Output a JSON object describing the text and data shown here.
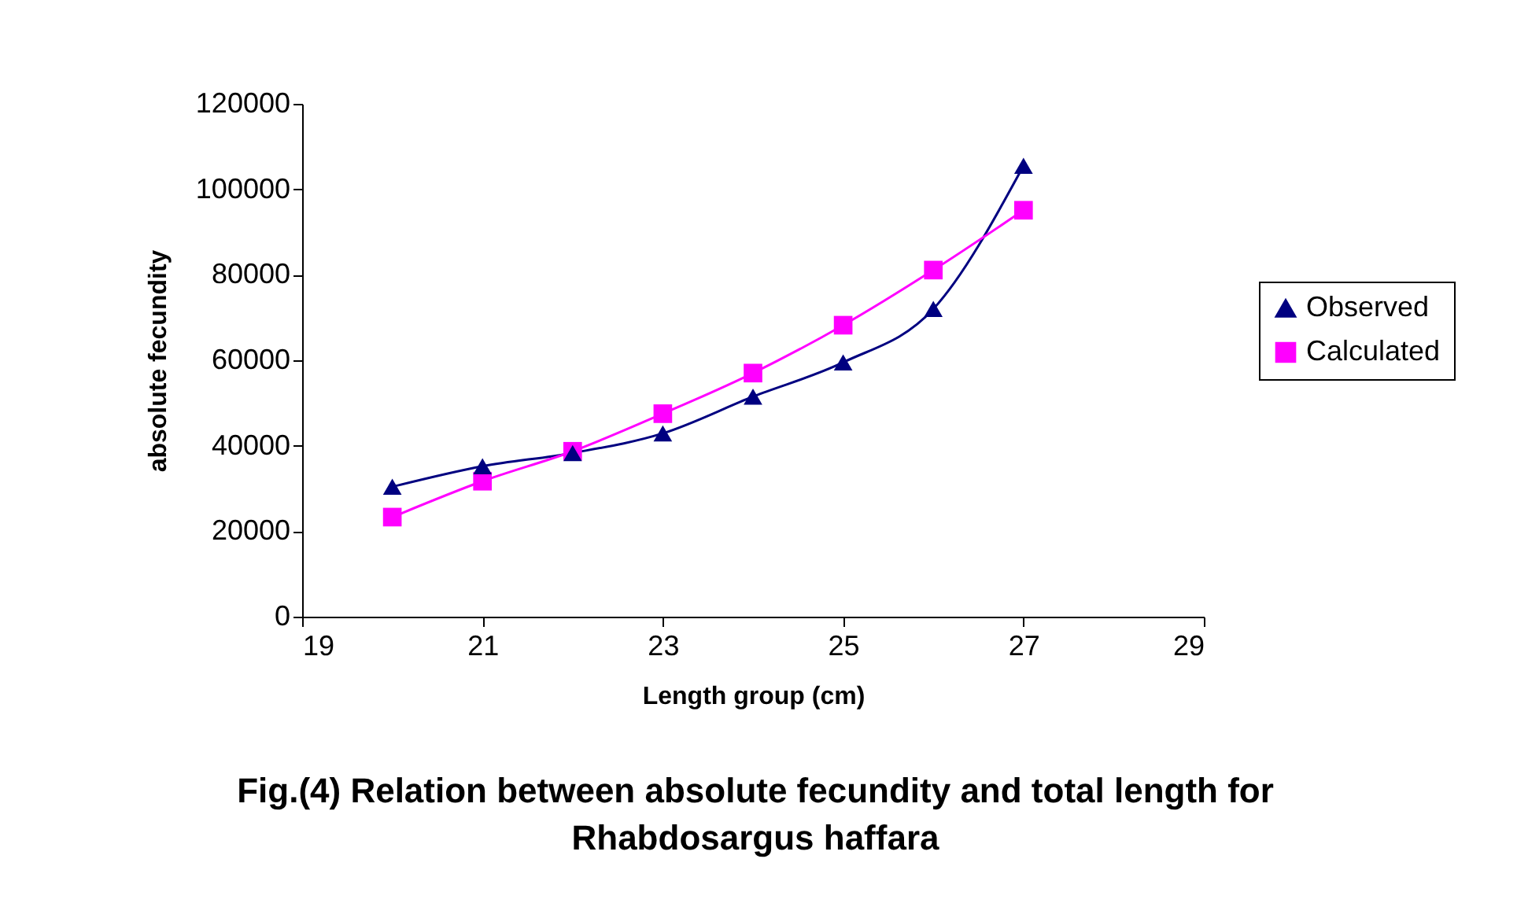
{
  "chart_data": {
    "type": "line",
    "title": "Fig.(4) Relation between absolute fecundity and total length for Rhabdosargus haffara",
    "xlabel": "Length group (cm)",
    "ylabel": "absolute fecundity",
    "x": [
      20,
      21,
      22,
      23,
      24,
      25,
      26,
      27
    ],
    "series": [
      {
        "name": "Observed",
        "color": "#000080",
        "marker": "triangle",
        "values": [
          30400,
          35200,
          38300,
          42900,
          51500,
          59500,
          72000,
          105500
        ]
      },
      {
        "name": "Calculated",
        "color": "#ff00ff",
        "marker": "square",
        "values": [
          23300,
          31700,
          38700,
          47500,
          57000,
          68200,
          81100,
          95100
        ]
      }
    ],
    "xlim": [
      19,
      29
    ],
    "xticks": [
      19,
      21,
      23,
      25,
      27,
      29
    ],
    "ylim": [
      0,
      120000
    ],
    "yticks": [
      0,
      20000,
      40000,
      60000,
      80000,
      100000,
      120000
    ],
    "grid": false,
    "legend": "right",
    "line_style": "solid"
  }
}
